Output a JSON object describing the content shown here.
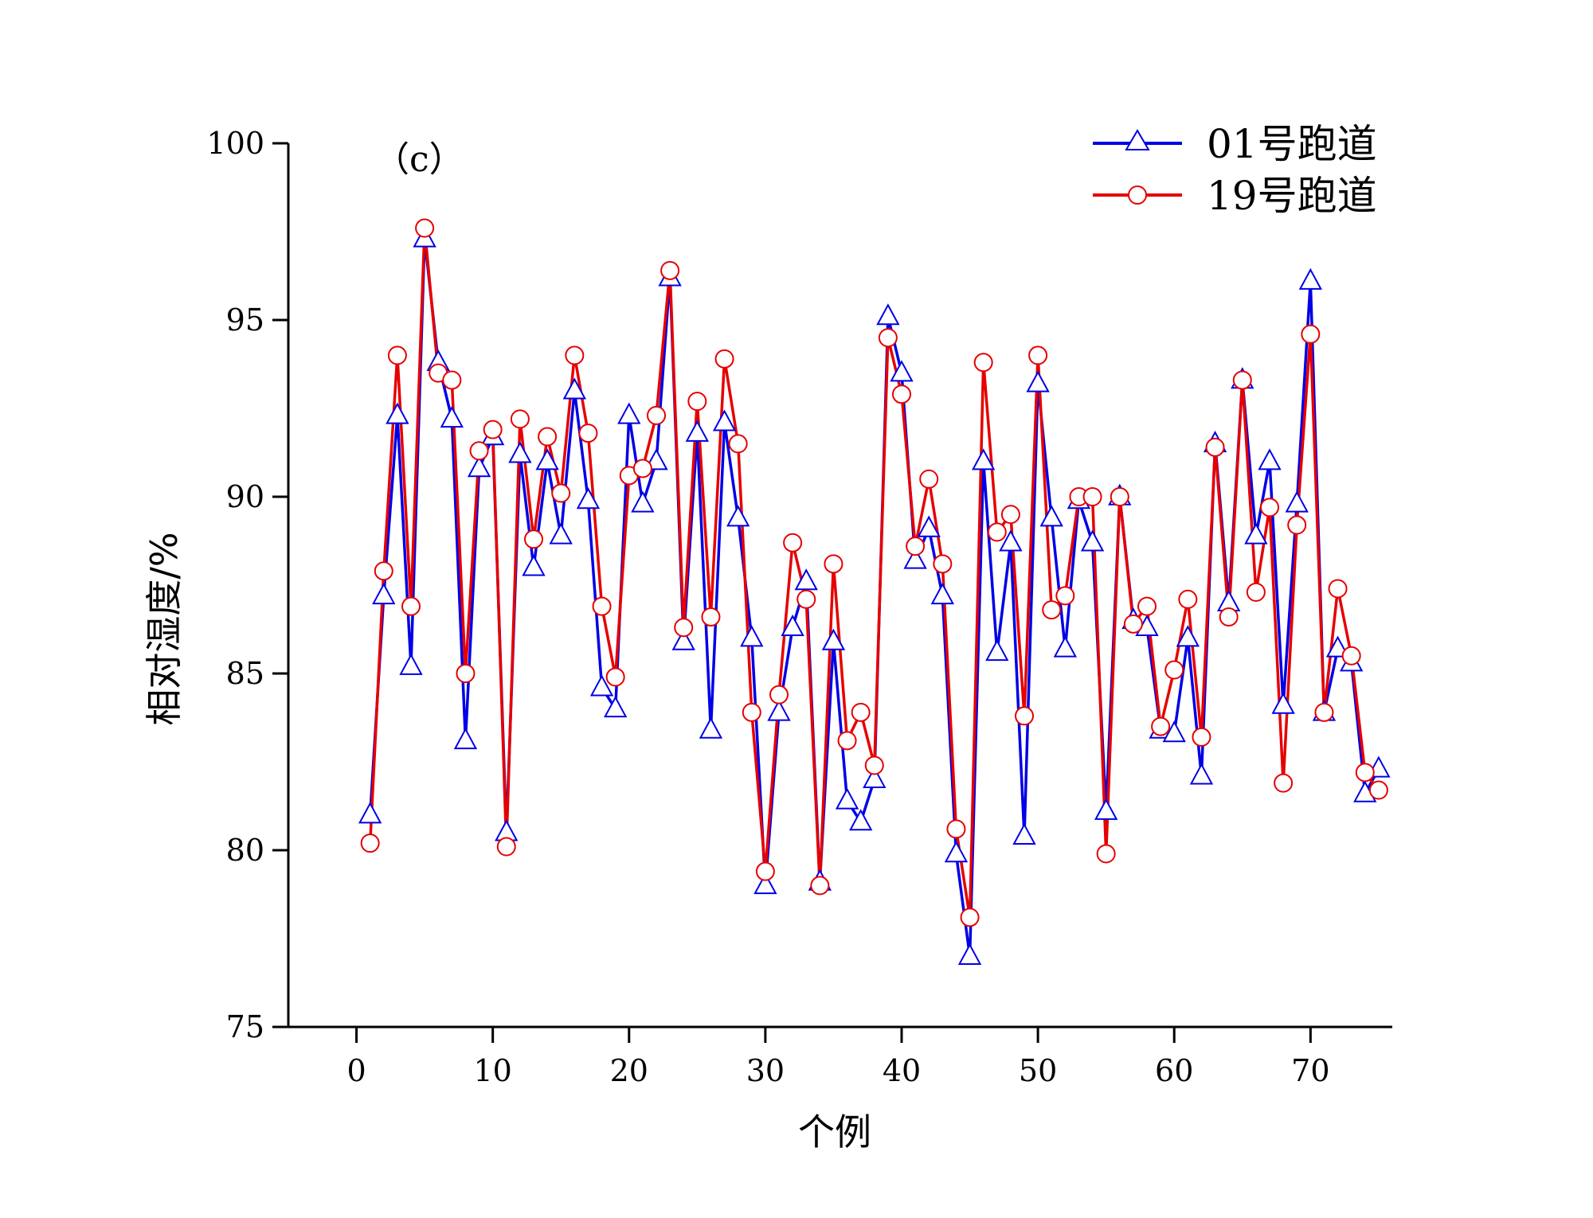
{
  "chart_data": {
    "type": "line",
    "panel_label": "（c）",
    "xlabel": "个例",
    "ylabel": "相对湿度/%",
    "xlim": [
      -5,
      76
    ],
    "ylim": [
      75,
      100
    ],
    "xticks": [
      0,
      10,
      20,
      30,
      40,
      50,
      60,
      70
    ],
    "yticks": [
      75,
      80,
      85,
      90,
      95,
      100
    ],
    "grid": false,
    "legend_position": "top-right",
    "x": [
      1,
      2,
      3,
      4,
      5,
      6,
      7,
      8,
      9,
      10,
      11,
      12,
      13,
      14,
      15,
      16,
      17,
      18,
      19,
      20,
      21,
      22,
      23,
      24,
      25,
      26,
      27,
      28,
      29,
      30,
      31,
      32,
      33,
      34,
      35,
      36,
      37,
      38,
      39,
      40,
      41,
      42,
      43,
      44,
      45,
      46,
      47,
      48,
      49,
      50,
      51,
      52,
      53,
      54,
      55,
      56,
      57,
      58,
      59,
      60,
      61,
      62,
      63,
      64,
      65,
      66,
      67,
      68,
      69,
      70,
      71,
      72,
      73,
      74,
      75
    ],
    "series": [
      {
        "name": "01号跑道",
        "color": "#0000e6",
        "marker": "triangle-open",
        "values": [
          81.0,
          87.2,
          92.3,
          85.2,
          97.3,
          93.8,
          92.2,
          83.1,
          90.8,
          91.7,
          80.5,
          91.2,
          88.0,
          91.0,
          88.9,
          93.0,
          89.9,
          84.6,
          84.0,
          92.3,
          89.8,
          91.0,
          96.2,
          85.9,
          91.8,
          83.4,
          92.1,
          89.4,
          86.0,
          79.0,
          83.9,
          86.3,
          87.6,
          79.1,
          85.9,
          81.4,
          80.8,
          82.0,
          95.1,
          93.5,
          88.2,
          89.1,
          87.2,
          79.9,
          77.0,
          91.0,
          85.6,
          88.7,
          80.4,
          93.2,
          89.4,
          85.7,
          89.9,
          88.7,
          81.1,
          90.0,
          86.5,
          86.3,
          83.4,
          83.3,
          86.0,
          82.1,
          91.5,
          87.0,
          93.3,
          88.9,
          91.0,
          84.1,
          89.8,
          96.1,
          83.9,
          85.7,
          85.3,
          81.6,
          82.3
        ]
      },
      {
        "name": "19号跑道",
        "color": "#e60000",
        "marker": "circle-open",
        "values": [
          80.2,
          87.9,
          94.0,
          86.9,
          97.6,
          93.5,
          93.3,
          85.0,
          91.3,
          91.9,
          80.1,
          92.2,
          88.8,
          91.7,
          90.1,
          94.0,
          91.8,
          86.9,
          84.9,
          90.6,
          90.8,
          92.3,
          96.4,
          86.3,
          92.7,
          86.6,
          93.9,
          91.5,
          83.9,
          79.4,
          84.4,
          88.7,
          87.1,
          79.0,
          88.1,
          83.1,
          83.9,
          82.4,
          94.5,
          92.9,
          88.6,
          90.5,
          88.1,
          80.6,
          78.1,
          93.8,
          89.0,
          89.5,
          83.8,
          94.0,
          86.8,
          87.2,
          90.0,
          90.0,
          79.9,
          90.0,
          86.4,
          86.9,
          83.5,
          85.1,
          87.1,
          83.2,
          91.4,
          86.6,
          93.3,
          87.3,
          89.7,
          81.9,
          89.2,
          94.6,
          83.9,
          87.4,
          85.5,
          82.2,
          81.7
        ]
      }
    ]
  }
}
